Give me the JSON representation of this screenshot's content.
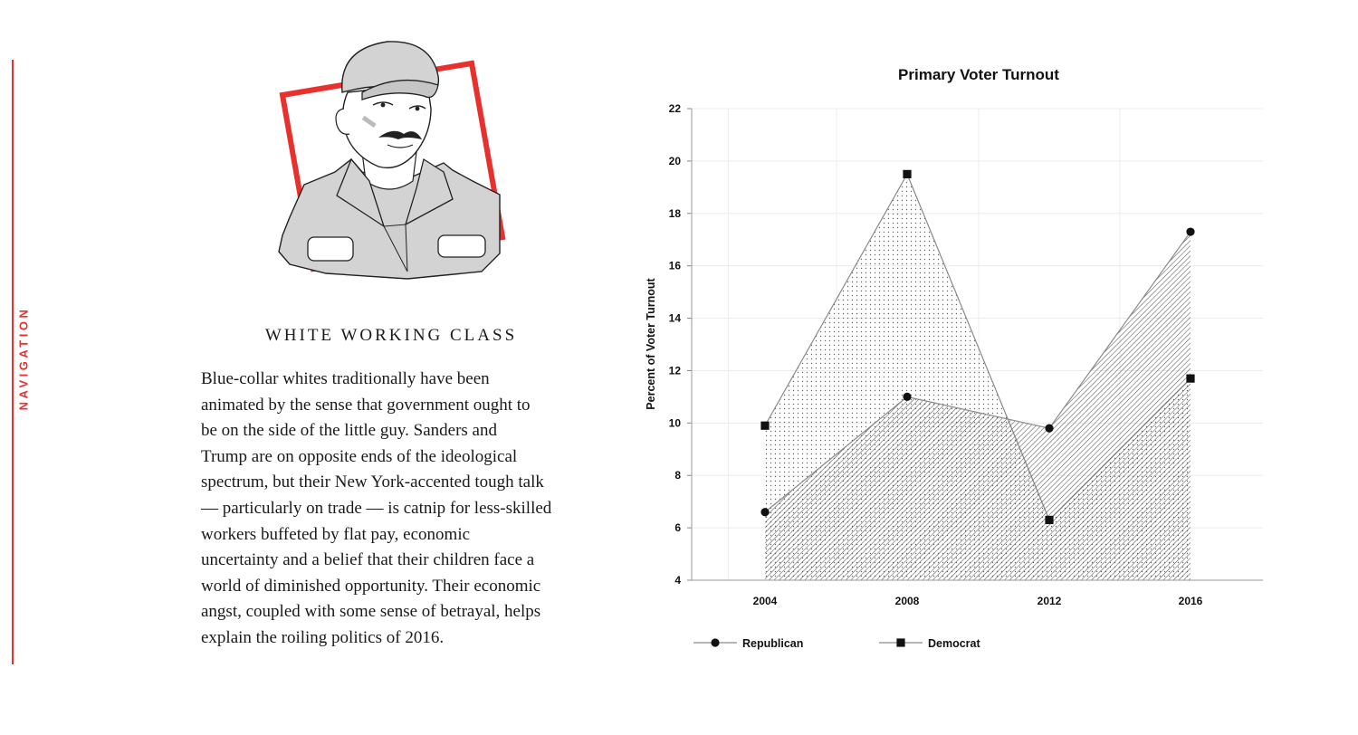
{
  "navigation": {
    "label": "NAVIGATION"
  },
  "section": {
    "heading": "WHITE WORKING CLASS",
    "body_lines": [
      "Blue-collar whites traditionally have been",
      "animated by the sense that government ought to",
      "be on the side of the little guy. Sanders and",
      "Trump are on opposite ends of the ideological",
      "spectrum, but their New York-accented tough talk",
      "— particularly on trade — is catnip for less-skilled",
      "workers buffeted by flat pay, economic",
      "uncertainty and a belief that their children face a",
      "world of diminished opportunity. Their economic",
      "angst, coupled with some sense of betrayal, helps",
      "explain the roiling politics of 2016."
    ]
  },
  "illustration": {
    "subject": "working-class-man-portrait",
    "accent_color": "#e8302c"
  },
  "chart_data": {
    "type": "area",
    "title": "Primary Voter Turnout",
    "xlabel": "",
    "ylabel": "Percent of Voter Turnout",
    "categories": [
      "2004",
      "2008",
      "2012",
      "2016"
    ],
    "ylim": [
      4,
      22
    ],
    "yticks": [
      4,
      6,
      8,
      10,
      12,
      14,
      16,
      18,
      20,
      22
    ],
    "grid": true,
    "legend": "bottom-left",
    "series": [
      {
        "name": "Republican",
        "values": [
          6.6,
          11.0,
          9.8,
          17.3
        ],
        "marker": "circle",
        "fill": "diagonal-hatch"
      },
      {
        "name": "Democrat",
        "values": [
          9.9,
          19.5,
          6.3,
          11.7
        ],
        "marker": "square",
        "fill": "dots"
      }
    ]
  }
}
